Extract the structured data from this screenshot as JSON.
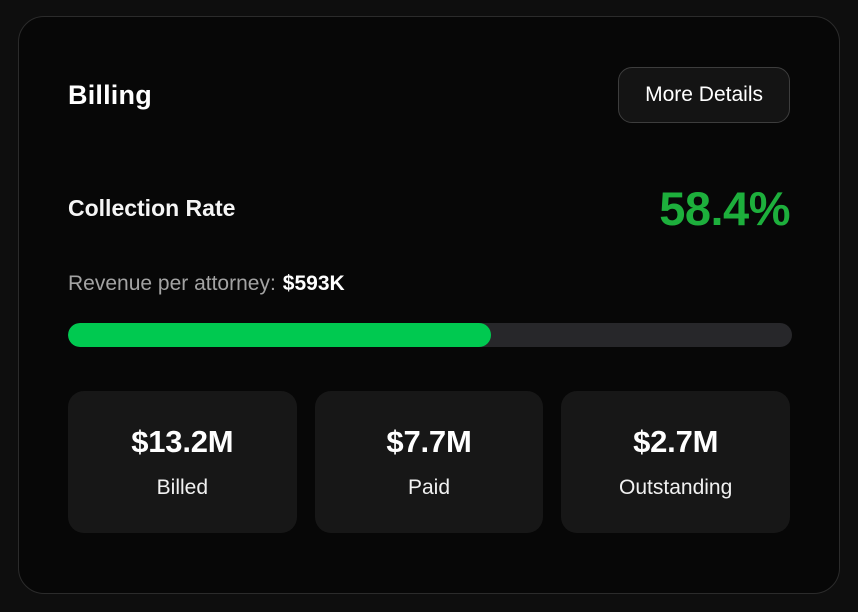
{
  "card": {
    "title": "Billing",
    "more_details_label": "More Details",
    "collection_rate_label": "Collection Rate",
    "collection_rate_value": "58.4%",
    "revenue_label": "Revenue per attorney:",
    "revenue_value": "$593K",
    "progress_percent": 58.4,
    "stats": [
      {
        "value": "$13.2M",
        "label": "Billed"
      },
      {
        "value": "$7.7M",
        "label": "Paid"
      },
      {
        "value": "$2.7M",
        "label": "Outstanding"
      }
    ],
    "colors": {
      "accent_green": "#1daf3c",
      "bar_green": "#00c950"
    }
  }
}
